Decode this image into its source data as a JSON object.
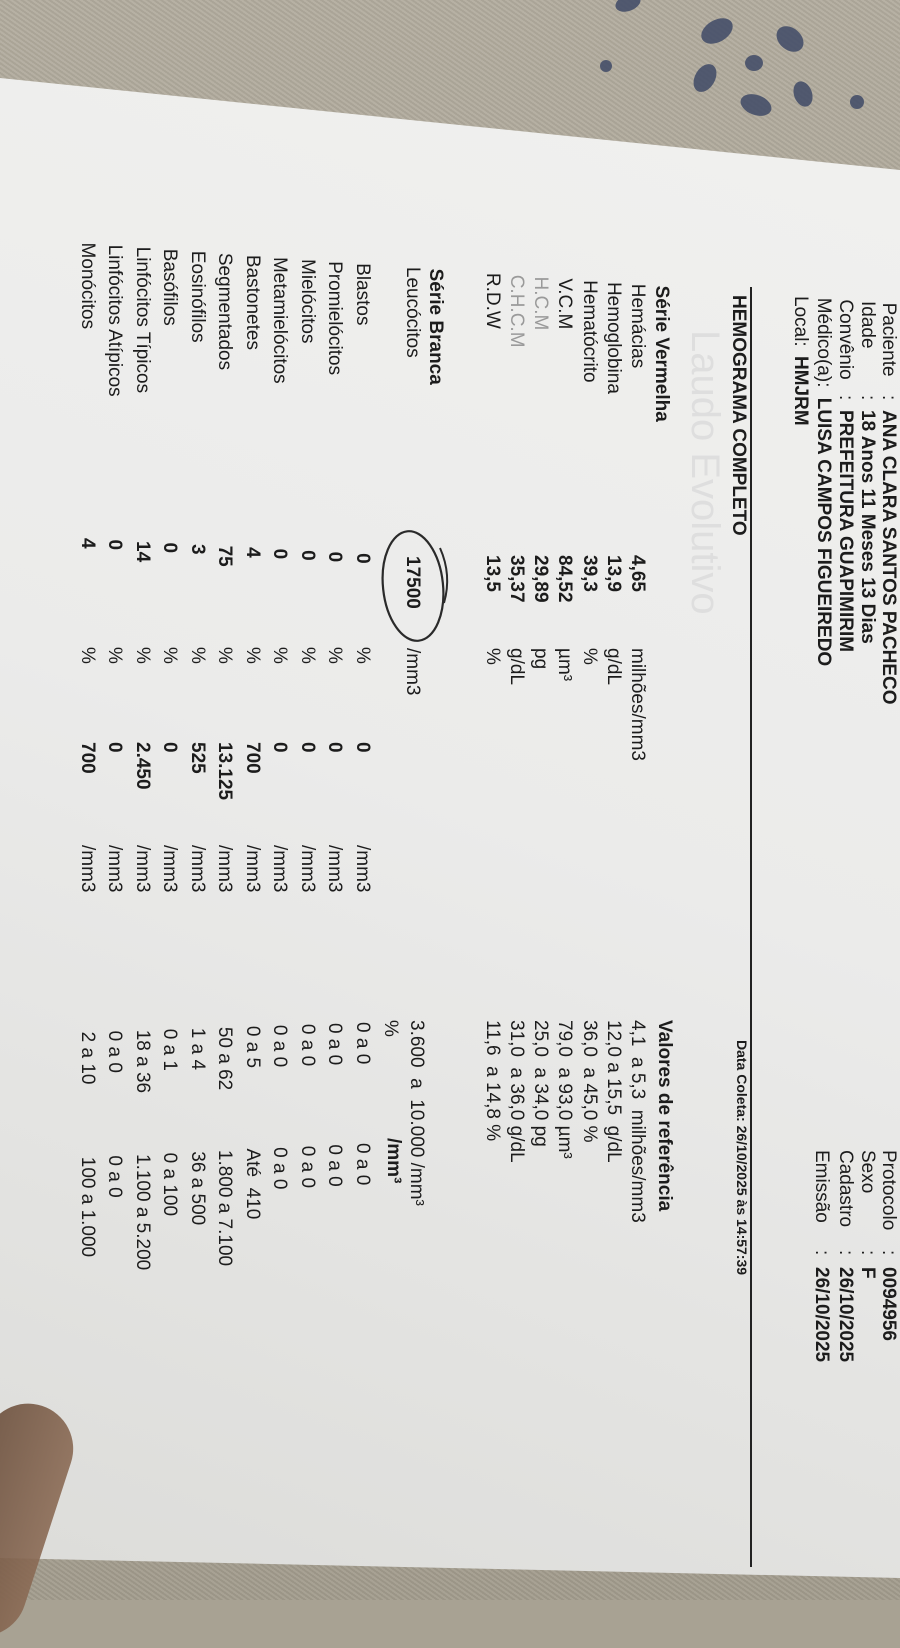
{
  "header": {
    "left": [
      {
        "label": "Paciente",
        "sep": ":",
        "value": "ANA CLARA SANTOS PACHECO"
      },
      {
        "label": "Idade",
        "sep": ":",
        "value": "18 Anos 11 Meses 13 Dias"
      },
      {
        "label": "Convênio",
        "sep": ":",
        "value": "PREFEITURA GUAPIMIRIM"
      },
      {
        "label": "Médico(a):",
        "sep": "",
        "value": "LUISA CAMPOS FIGUEIREDO"
      },
      {
        "label": "Local:",
        "sep": "",
        "value": "HMJRM"
      }
    ],
    "right": [
      {
        "label": "Protocolo",
        "sep": ":",
        "value": "0094956"
      },
      {
        "label": "Sexo",
        "sep": ":",
        "value": "F"
      },
      {
        "label": "Cadastro",
        "sep": ":",
        "value": "26/10/2025"
      },
      {
        "label": "Emissão",
        "sep": ":",
        "value": "26/10/2025"
      }
    ]
  },
  "exam": {
    "title": "HEMOGRAMA COMPLETO",
    "collection": "Data Coleta: 26/10/2025 às 14:57:39",
    "watermark": "Laudo Evolutivo"
  },
  "red_series": {
    "title": "Série Vermelha",
    "reference_title": "Valores de referência",
    "rows": [
      {
        "name": "Hemácias",
        "value": "4,65",
        "unit": "milhões/mm3",
        "reference": "4,1  a 5,3  milhões/mm3"
      },
      {
        "name": "Hemoglobina",
        "value": "13,9",
        "unit": "g/dL",
        "reference": "12,0 a 15,5  g/dL"
      },
      {
        "name": "Hematócrito",
        "value": "39,3",
        "unit": "%",
        "reference": "36,0  a 45,0 %"
      },
      {
        "name": "V.C.M",
        "value": "84,52",
        "unit": "µm³",
        "reference": "79,0  a 93,0 µm³"
      },
      {
        "name": "H.C.M",
        "value": "29,89",
        "unit": "pg",
        "reference": "25,0  a 34,0 pg"
      },
      {
        "name": "C.H.C.M",
        "value": "35,37",
        "unit": "g/dL",
        "reference": "31,0  a 36,0 g/dL"
      },
      {
        "name": "R.D.W",
        "value": "13,5",
        "unit": "%",
        "reference": "11,6  a 14,8 %"
      }
    ]
  },
  "white_series": {
    "title": "Série Branca",
    "leukocytes": {
      "name": "Leucócitos",
      "value": "17500",
      "unit": "/mm3",
      "reference": "3.600  a  10.000 /mm³",
      "highlighted": true
    },
    "reference_headers": {
      "pct": "%",
      "abs": "/mm³"
    },
    "rows": [
      {
        "name": "Blastos",
        "pct": "0",
        "pct_unit": "%",
        "abs": "0",
        "abs_unit": "/mm3",
        "ref_pct": "0 a 0",
        "ref_abs": "0 a 0"
      },
      {
        "name": "Promielócitos",
        "pct": "0",
        "pct_unit": "%",
        "abs": "0",
        "abs_unit": "/mm3",
        "ref_pct": "0 a 0",
        "ref_abs": "0 a 0"
      },
      {
        "name": "Mielócitos",
        "pct": "0",
        "pct_unit": "%",
        "abs": "0",
        "abs_unit": "/mm3",
        "ref_pct": "0 a 0",
        "ref_abs": "0 a 0"
      },
      {
        "name": "Metamielócitos",
        "pct": "0",
        "pct_unit": "%",
        "abs": "0",
        "abs_unit": "/mm3",
        "ref_pct": "0 a 0",
        "ref_abs": "0 a 0"
      },
      {
        "name": "Bastonetes",
        "pct": "4",
        "pct_unit": "%",
        "abs": "700",
        "abs_unit": "/mm3",
        "ref_pct": "0 a 5",
        "ref_abs": "Até  410"
      },
      {
        "name": "Segmentados",
        "pct": "75",
        "pct_unit": "%",
        "abs": "13.125",
        "abs_unit": "/mm3",
        "ref_pct": "50 a 62",
        "ref_abs": "1.800 a 7.100"
      },
      {
        "name": "Eosinófilos",
        "pct": "3",
        "pct_unit": "%",
        "abs": "525",
        "abs_unit": "/mm3",
        "ref_pct": "1 a 4",
        "ref_abs": "36 a 500"
      },
      {
        "name": "Basófilos",
        "pct": "0",
        "pct_unit": "%",
        "abs": "0",
        "abs_unit": "/mm3",
        "ref_pct": "0 a 1",
        "ref_abs": "0 a 100"
      },
      {
        "name": "Linfócitos Típicos",
        "pct": "14",
        "pct_unit": "%",
        "abs": "2.450",
        "abs_unit": "/mm3",
        "ref_pct": "18 a 36",
        "ref_abs": "1.100 a 5.200"
      },
      {
        "name": "Linfócitos Atípicos",
        "pct": "0",
        "pct_unit": "%",
        "abs": "0",
        "abs_unit": "/mm3",
        "ref_pct": "0 a 0",
        "ref_abs": "0 a 0"
      },
      {
        "name": "Monócitos",
        "pct": "4",
        "pct_unit": "%",
        "abs": "700",
        "abs_unit": "/mm3",
        "ref_pct": "2 a 10",
        "ref_abs": "100 a 1.000"
      }
    ]
  },
  "colors": {
    "paper": "#ecebe8",
    "fabric": "#a8a293",
    "fabric_pattern": "#3f4a66",
    "ink": "#1c1c1c",
    "pen": "#2a2a2a"
  }
}
